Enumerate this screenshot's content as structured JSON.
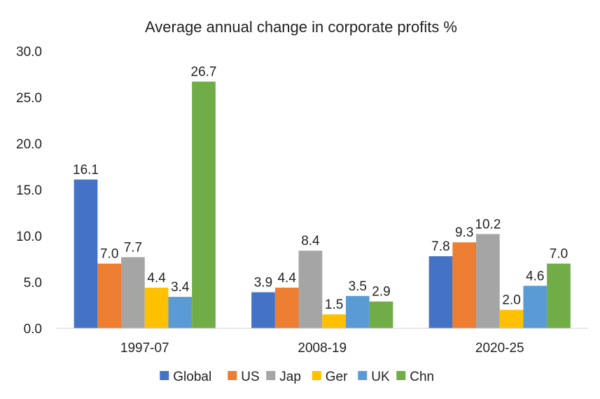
{
  "chart_data": {
    "type": "bar",
    "title": "Average annual change in corporate profits %",
    "xlabel": "",
    "ylabel": "",
    "ylim": [
      0,
      30
    ],
    "yticks": [
      "0.0",
      "5.0",
      "10.0",
      "15.0",
      "20.0",
      "25.0",
      "30.0"
    ],
    "grid": false,
    "legend_position": "bottom",
    "categories": [
      "1997-07",
      "2008-19",
      "2020-25"
    ],
    "series": [
      {
        "name": "Global",
        "color": "#4472C4",
        "values": [
          16.1,
          3.9,
          7.8
        ]
      },
      {
        "name": "US",
        "color": "#ED7D31",
        "values": [
          7.0,
          4.4,
          9.3
        ]
      },
      {
        "name": "Jap",
        "color": "#A5A5A5",
        "values": [
          7.7,
          8.4,
          10.2
        ]
      },
      {
        "name": "Ger",
        "color": "#FFC000",
        "values": [
          4.4,
          1.5,
          2.0
        ]
      },
      {
        "name": "UK",
        "color": "#5B9BD5",
        "values": [
          3.4,
          3.5,
          4.6
        ]
      },
      {
        "name": "Chn",
        "color": "#70AD47",
        "values": [
          26.7,
          2.9,
          7.0
        ]
      }
    ]
  }
}
